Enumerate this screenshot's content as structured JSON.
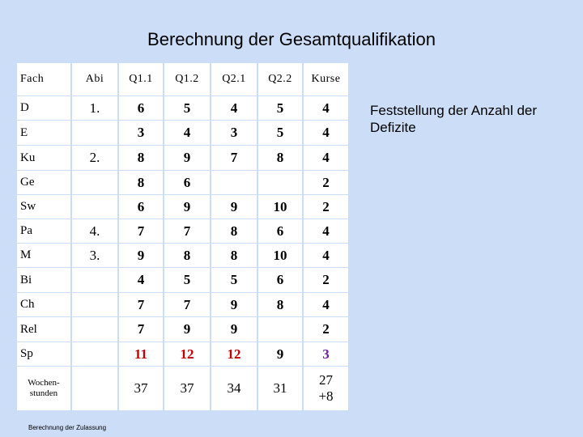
{
  "title": "Berechnung der Gesamtqualifikation",
  "headers": [
    "Fach",
    "Abi",
    "Q1.1",
    "Q1.2",
    "Q2.1",
    "Q2.2",
    "Kurse"
  ],
  "rows": [
    [
      "D",
      "1.",
      "6",
      "5",
      "4",
      "5",
      "4"
    ],
    [
      "E",
      "",
      "3",
      "4",
      "3",
      "5",
      "4"
    ],
    [
      "Ku",
      "2.",
      "8",
      "9",
      "7",
      "8",
      "4"
    ],
    [
      "Ge",
      "",
      "8",
      "6",
      "",
      "",
      "2"
    ],
    [
      "Sw",
      "",
      "6",
      "9",
      "9",
      "10",
      "2"
    ],
    [
      "Pa",
      "4.",
      "7",
      "7",
      "8",
      "6",
      "4"
    ],
    [
      "M",
      "3.",
      "9",
      "8",
      "8",
      "10",
      "4"
    ],
    [
      "Bi",
      "",
      "4",
      "5",
      "5",
      "6",
      "2"
    ],
    [
      "Ch",
      "",
      "7",
      "7",
      "9",
      "8",
      "4"
    ],
    [
      "Rel",
      "",
      "7",
      "9",
      "9",
      "",
      "2"
    ],
    [
      "Sp",
      "",
      "11",
      "12",
      "12",
      "9",
      "3"
    ],
    [
      "Wochen-\nstunden",
      "",
      "37",
      "37",
      "34",
      "31",
      "27\n+8"
    ]
  ],
  "note": "Feststellung der Anzahl der Defizite",
  "footer": "Berechnung der Zulassung",
  "colors": {
    "background": "#ccddf7",
    "cell": "#ffffff",
    "highlight": "#c00000",
    "purple": "#7020a0"
  }
}
